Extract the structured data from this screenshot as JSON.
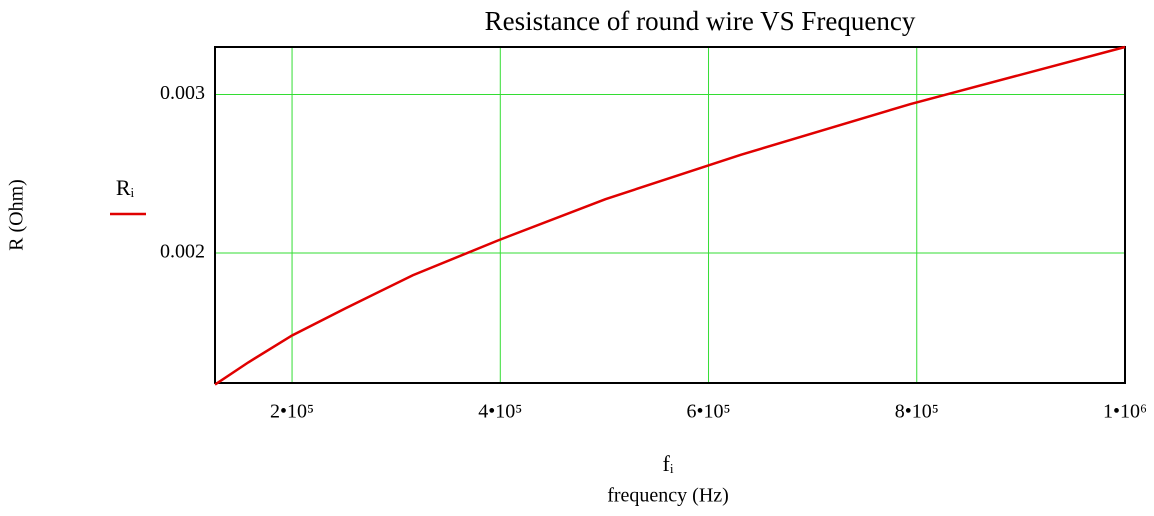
{
  "chart_data": {
    "type": "line",
    "title": "Resistance of round wire VS Frequency",
    "x_label": "fᵢ",
    "x_label2": "frequency (Hz)",
    "y_label": "R (Ohm)",
    "x": [
      126000,
      158000,
      200000,
      251000,
      316000,
      398000,
      501000,
      631000,
      794000,
      1000000
    ],
    "series": [
      {
        "name": "Rᵢ",
        "color": "#e00000",
        "values": [
          0.00117,
          0.00131,
          0.00148,
          0.00165,
          0.00186,
          0.00208,
          0.00234,
          0.00262,
          0.00294,
          0.0033
        ]
      }
    ],
    "xlim": [
      126000,
      1000000
    ],
    "ylim": [
      0.00118,
      0.0033
    ],
    "xticks": [
      {
        "value": 200000,
        "label": "2•10⁵"
      },
      {
        "value": 400000,
        "label": "4•10⁵"
      },
      {
        "value": 600000,
        "label": "6•10⁵"
      },
      {
        "value": 800000,
        "label": "8•10⁵"
      },
      {
        "value": 1000000,
        "label": "1•10⁶"
      }
    ],
    "yticks": [
      0.002,
      0.003
    ],
    "grid": true,
    "grid_color": "#33dd33"
  }
}
